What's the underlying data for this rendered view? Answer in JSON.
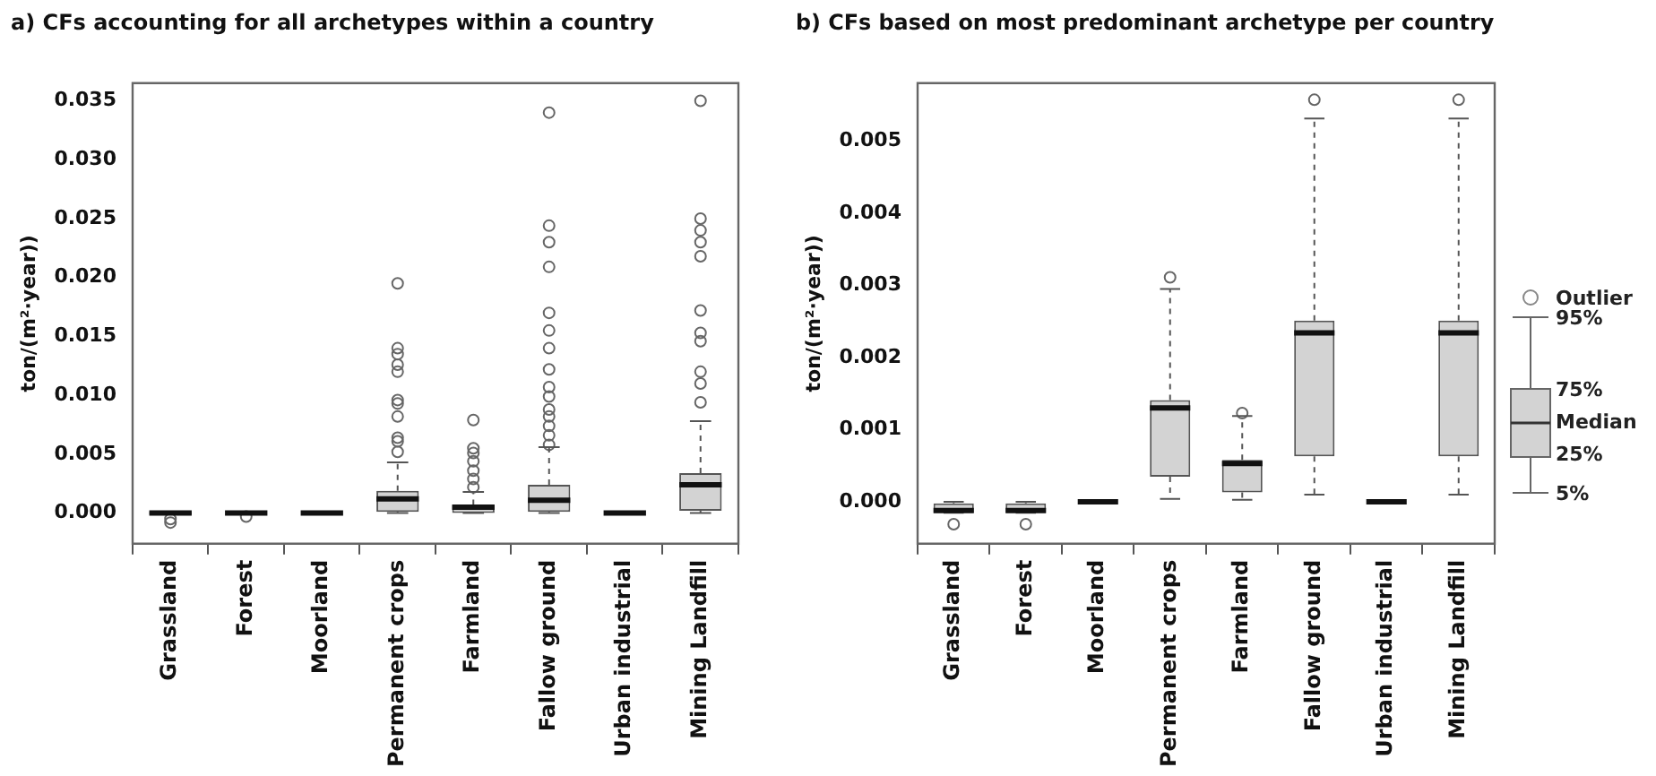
{
  "chart_data": [
    {
      "type": "box",
      "title": "a) CFs accounting for all archetypes within a country",
      "ylabel": "ton/(m²·year))",
      "categories": [
        "Grassland",
        "Forest",
        "Moorland",
        "Permanent crops",
        "Farmland",
        "Fallow ground",
        "Urban industrial",
        "Mining Landfill"
      ],
      "boxes": [
        {
          "low": -0.0001,
          "q1": -0.0001,
          "median": 0,
          "q3": 0.0001,
          "high": 0.0001,
          "outliers": [
            -0.0008,
            -0.0005
          ]
        },
        {
          "low": 0,
          "q1": 0,
          "median": 0,
          "q3": 0,
          "high": 0,
          "outliers": [
            -0.0003
          ]
        },
        {
          "low": 0,
          "q1": 0,
          "median": 0,
          "q3": 0,
          "high": 0
        },
        {
          "low": 0,
          "q1": 0.0001,
          "median": 0.0012,
          "q3": 0.0019,
          "high": 0.0043,
          "outliers": [
            0.0195,
            0.014,
            0.0135,
            0.0126,
            0.012,
            0.0096,
            0.0093,
            0.0082,
            0.0064,
            0.0061,
            0.0052
          ]
        },
        {
          "low": 0,
          "q1": 0,
          "median": 0.0005,
          "q3": 0.0007,
          "high": 0.0018,
          "outliers": [
            0.0079,
            0.0055,
            0.0051,
            0.0044,
            0.0036,
            0.0029,
            0.0022
          ]
        },
        {
          "low": 0,
          "q1": 0.0001,
          "median": 0.0011,
          "q3": 0.0024,
          "high": 0.0056,
          "outliers": [
            0.034,
            0.0244,
            0.023,
            0.0209,
            0.017,
            0.0155,
            0.014,
            0.0122,
            0.0107,
            0.0099,
            0.0088,
            0.0082,
            0.0074,
            0.0066,
            0.0058
          ]
        },
        {
          "low": 0,
          "q1": 0,
          "median": 0,
          "q3": 0,
          "high": 0
        },
        {
          "low": 0,
          "q1": 0.0002,
          "median": 0.0024,
          "q3": 0.0034,
          "high": 0.0078,
          "outliers": [
            0.035,
            0.025,
            0.024,
            0.023,
            0.0218,
            0.0172,
            0.0153,
            0.0146,
            0.012,
            0.011,
            0.0094
          ]
        }
      ],
      "ylim": [
        -0.0026,
        0.0365
      ],
      "yticks": [
        {
          "value": 0,
          "label": "0.000"
        },
        0.005,
        {
          "value": 0.01,
          "label": "0.010"
        },
        0.015,
        {
          "value": 0.02,
          "label": "0.020"
        },
        0.025,
        {
          "value": 0.03,
          "label": "0.030"
        },
        0.035
      ],
      "grid": false
    },
    {
      "type": "box",
      "title": "b) CFs based on most predominant archetype per country",
      "ylabel": "ton/(m²·year))",
      "categories": [
        "Grassland",
        "Forest",
        "Moorland",
        "Permanent crops",
        "Farmland",
        "Fallow ground",
        "Urban industrial",
        "Mining Landfill"
      ],
      "boxes": [
        {
          "low": -0.00015,
          "q1": -0.00015,
          "median": -0.00012,
          "q3": -2e-05,
          "high": 0,
          "outliers": [
            -0.00031
          ]
        },
        {
          "low": -0.00015,
          "q1": -0.00015,
          "median": -0.00012,
          "q3": -2e-05,
          "high": 0,
          "outliers": [
            -0.00031
          ]
        },
        {
          "low": 0,
          "q1": 0,
          "median": 0,
          "q3": 0,
          "high": 0
        },
        {
          "low": 4e-05,
          "q1": 0.00035,
          "median": 0.0013,
          "q3": 0.00141,
          "high": 0.00295,
          "outliers": [
            0.00311
          ]
        },
        {
          "low": 3e-05,
          "q1": 0.00013,
          "median": 0.00053,
          "q3": 0.00058,
          "high": 0.00119,
          "outliers": [
            0.00123
          ]
        },
        {
          "low": 0.0001,
          "q1": 0.00063,
          "median": 0.00234,
          "q3": 0.00251,
          "high": 0.00531,
          "outliers": [
            0.00557
          ]
        },
        {
          "low": 0,
          "q1": 0,
          "median": 0,
          "q3": 0,
          "high": 0
        },
        {
          "low": 0.0001,
          "q1": 0.00063,
          "median": 0.00234,
          "q3": 0.00251,
          "high": 0.00531,
          "outliers": [
            0.00557
          ]
        }
      ],
      "ylim": [
        -0.00058,
        0.0058
      ],
      "yticks": [
        {
          "value": 0,
          "label": "0.000"
        },
        0.001,
        0.002,
        0.003,
        0.004,
        0.005
      ],
      "grid": false,
      "annotations": [
        "Outlier",
        "95%",
        "75%",
        "Median",
        "25%",
        "5%"
      ]
    }
  ]
}
